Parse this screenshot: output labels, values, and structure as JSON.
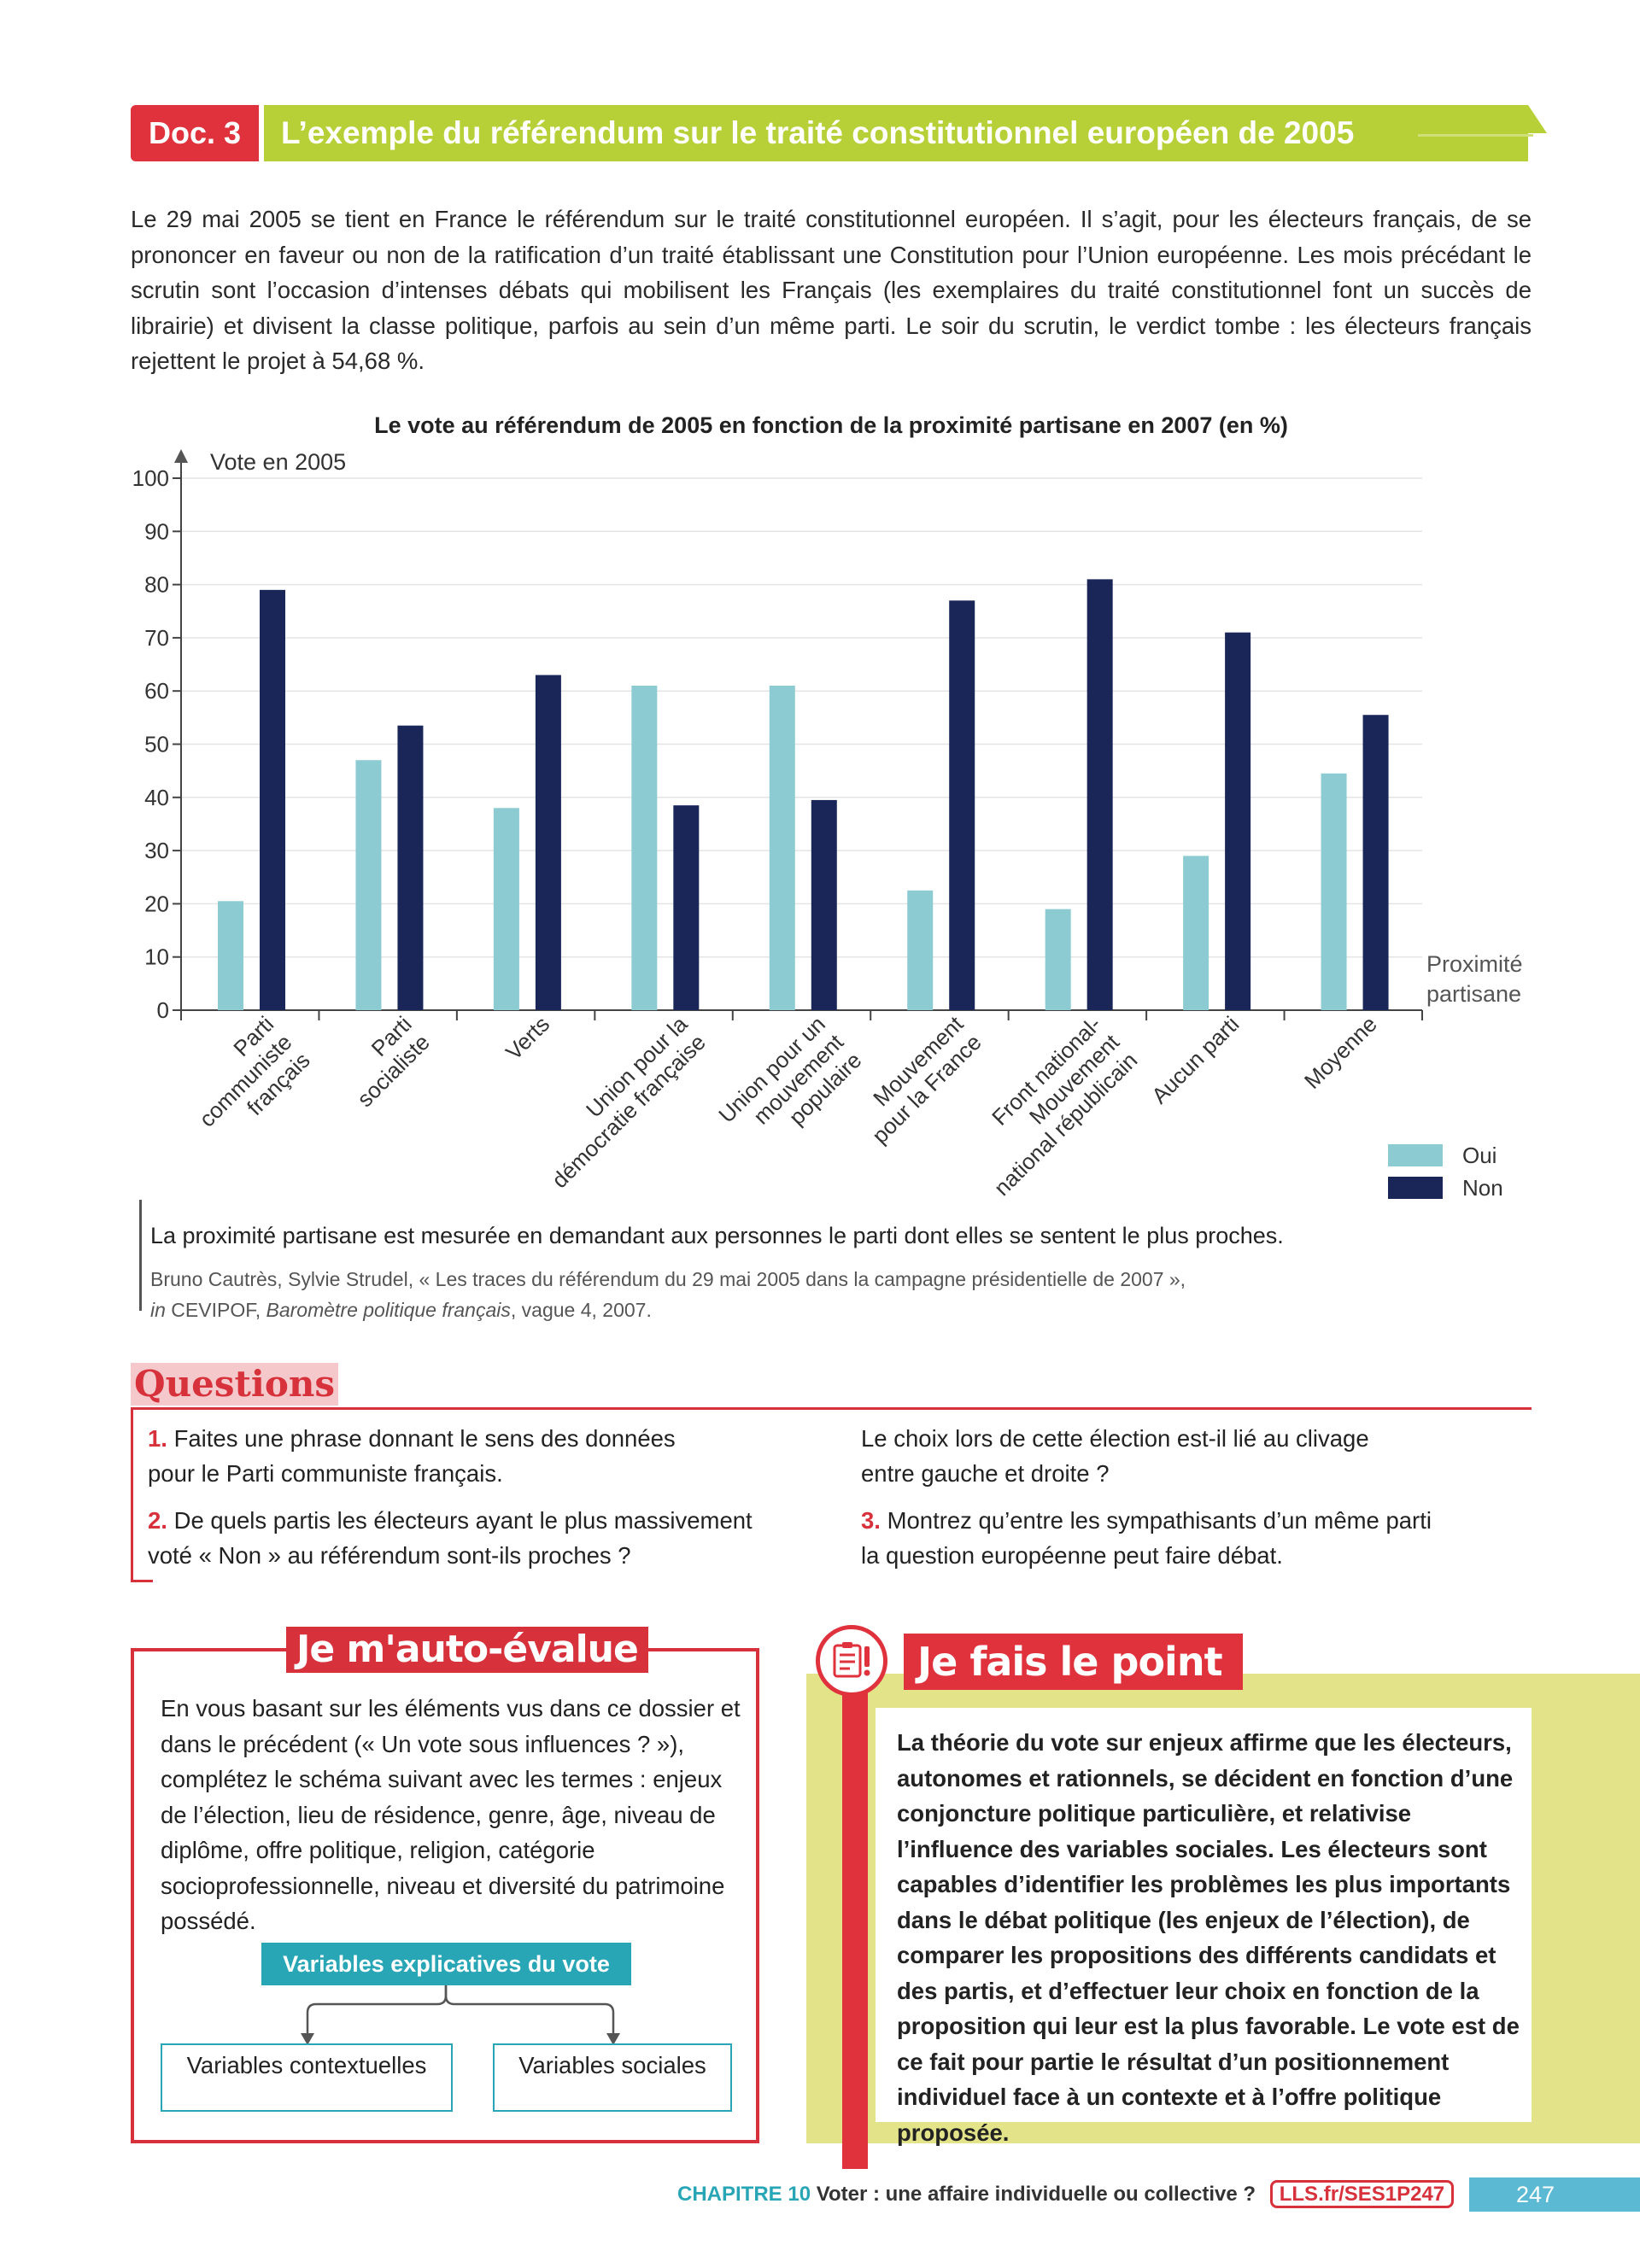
{
  "doc": {
    "label": "Doc. 3",
    "title": "L’exemple du référendum sur le traité constitutionnel européen de 2005"
  },
  "intro": "Le 29 mai 2005 se tient en France le référendum sur le traité constitutionnel européen. Il s’agit, pour les électeurs français, de se prononcer en faveur ou non de la ratification d’un traité établissant une Constitution pour l’Union européenne. Les mois précédant le scrutin sont l’occasion d’intenses débats qui mobilisent les Français (les exemplaires du traité constitutionnel font un succès de librairie) et divisent la classe politique, parfois au sein d’un même parti. Le soir du scrutin, le verdict tombe : les électeurs français rejettent le projet à 54,68 %.",
  "chart_data": {
    "type": "bar",
    "title": "Le vote au référendum de 2005 en fonction de la proximité partisane en 2007 (en %)",
    "ylabel": "Vote en 2005",
    "xlabel": "Proximité partisane",
    "ylim": [
      0,
      100
    ],
    "yticks": [
      0,
      10,
      20,
      30,
      40,
      50,
      60,
      70,
      80,
      90,
      100
    ],
    "categories": [
      [
        "Parti",
        "communiste",
        "français"
      ],
      [
        "Parti",
        "socialiste"
      ],
      [
        "Verts"
      ],
      [
        "Union pour la",
        "démocratie française"
      ],
      [
        "Union pour un",
        "mouvement",
        "populaire"
      ],
      [
        "Mouvement",
        "pour la France"
      ],
      [
        "Front national-",
        "Mouvement",
        "national républicain"
      ],
      [
        "Aucun parti"
      ],
      [
        "Moyenne"
      ]
    ],
    "series": [
      {
        "name": "Oui",
        "color": "#8ccbd1",
        "values": [
          20.5,
          47,
          38,
          61,
          61,
          22.5,
          19,
          29,
          44.5
        ]
      },
      {
        "name": "Non",
        "color": "#1a2558",
        "values": [
          79,
          53.5,
          63,
          38.5,
          39.5,
          77,
          81,
          71,
          55.5
        ]
      }
    ],
    "grid": true,
    "legend_position": "bottom-right"
  },
  "caption": "La proximité partisane est mesurée en demandant aux personnes le parti dont elles se sentent le plus proches.",
  "source": {
    "line1": "Bruno Cautrès, Sylvie Strudel, « Les traces du référendum du 29 mai 2005 dans la campagne présidentielle de 2007 »,",
    "in": "in",
    "org": " CEVIPOF, ",
    "pub": "Baromètre politique français",
    "rest": ", vague 4, 2007."
  },
  "questions": {
    "title": "Questions",
    "q1_num": "1.",
    "q1_line1": " Faites une phrase donnant le sens des données",
    "q1_line2": "pour le Parti communiste français.",
    "q2_num": "2.",
    "q2_line1": " De quels partis les électeurs ayant le plus massivement",
    "q2_line2": "voté « Non » au référendum sont-ils proches ?",
    "q2b_line1": "Le choix lors de cette élection est-il lié au clivage",
    "q2b_line2": "entre gauche et droite ?",
    "q3_num": "3.",
    "q3_line1": " Montrez qu’entre les sympathisants d’un même parti",
    "q3_line2": "la question européenne peut faire débat."
  },
  "auto": {
    "title": "Je m'auto-évalue",
    "text": "En vous basant sur les éléments vus dans ce dossier et dans le précédent (« Un vote sous influences ? »), complétez le schéma suivant avec les termes : enjeux de l’élection, lieu de résidence, genre, âge, niveau de diplôme, offre politique, religion, catégorie socioprofessionnelle, niveau et diversité du patrimoine possédé.",
    "head": "Variables explicatives du vote",
    "left": "Variables contextuelles",
    "right": "Variables sociales"
  },
  "point": {
    "title": "Je fais le point",
    "icon": "clipboard-exclamation-icon",
    "text": "La théorie du vote sur enjeux affirme que les électeurs, autonomes et rationnels, se décident en fonction d’une conjoncture politique particulière, et relativise l’influence des variables sociales. Les électeurs sont capables d’identifier les problèmes les plus importants dans le débat politique (les enjeux de l’élection), de comparer les propositions des différents candidats et des partis, et d’effectuer leur choix en fonction de la proposition qui leur est la plus favorable. Le vote est de ce fait pour partie le résultat d’un positionnement individuel face à un contexte et à l’offre politique proposée."
  },
  "footer": {
    "chapter": "CHAPITRE 10",
    "subtitle": "Voter : une affaire individuelle ou collective ?",
    "link": "LLS.fr/SES1P247",
    "page": "247"
  }
}
